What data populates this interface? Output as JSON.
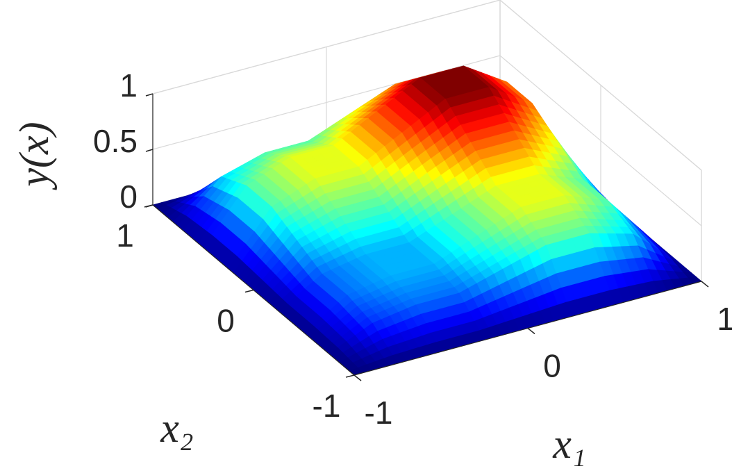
{
  "chart_data": {
    "type": "surface",
    "xlabel": "x₁",
    "ylabel": "x₂",
    "zlabel": "y(x)",
    "x": [
      -1,
      -0.75,
      -0.5,
      -0.25,
      0,
      0.25,
      0.5,
      0.75,
      1
    ],
    "y": [
      -1,
      -0.75,
      -0.5,
      -0.25,
      0,
      0.25,
      0.5,
      0.75,
      1
    ],
    "z": [
      [
        0,
        0,
        0,
        0,
        0,
        0,
        0,
        0,
        0
      ],
      [
        0,
        0.17,
        0.23,
        0.23,
        0.34,
        0.45,
        0.45,
        0.34,
        0
      ],
      [
        0,
        0.23,
        0.3,
        0.3,
        0.45,
        0.6,
        0.6,
        0.45,
        0
      ],
      [
        0,
        0.23,
        0.3,
        0.3,
        0.45,
        0.6,
        0.6,
        0.45,
        0
      ],
      [
        0,
        0.34,
        0.45,
        0.45,
        0.63,
        0.8,
        0.8,
        0.6,
        0
      ],
      [
        0,
        0.45,
        0.6,
        0.6,
        0.8,
        1,
        1,
        0.75,
        0
      ],
      [
        0,
        0.45,
        0.6,
        0.6,
        0.8,
        1,
        1,
        0.75,
        0
      ],
      [
        0,
        0.34,
        0.45,
        0.45,
        0.6,
        0.75,
        0.75,
        0.56,
        0
      ],
      [
        0,
        0,
        0,
        0,
        0,
        0,
        0,
        0,
        0
      ]
    ],
    "colormap": "jet",
    "xlim": [
      -1,
      1
    ],
    "ylim": [
      -1,
      1
    ],
    "zlim": [
      0,
      1
    ],
    "xticks": [
      -1,
      0,
      1
    ],
    "yticks": [
      -1,
      0,
      1
    ],
    "zticks": [
      0,
      0.5,
      1
    ],
    "grid": true
  }
}
